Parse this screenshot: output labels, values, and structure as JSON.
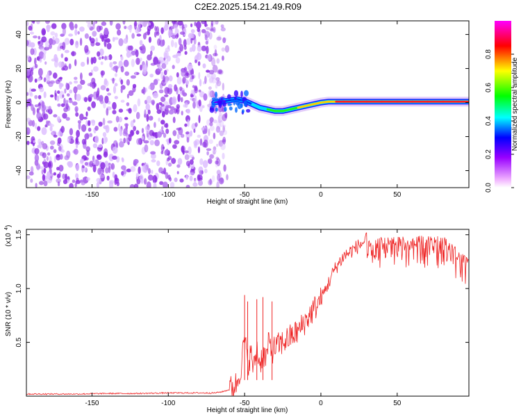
{
  "title": "C2E2.2025.154.21.49.R09",
  "colors": {
    "snr_line": "#ee2222",
    "axis": "#000000"
  },
  "chart_data": [
    {
      "type": "heatmap",
      "name": "spectrogram",
      "xlabel": "Height of straight line (km)",
      "ylabel": "Frequency (Hz)",
      "xlim": [
        -193,
        97
      ],
      "ylim": [
        -50,
        48
      ],
      "xticks": [
        -150,
        -100,
        -50,
        0,
        50
      ],
      "yticks": [
        -40,
        -20,
        0,
        20,
        40
      ],
      "colorbar": {
        "label": "Normalized spectral amplitude",
        "range": [
          0,
          1
        ],
        "ticks": [
          "0.0",
          "0.2",
          "0.4",
          "0.6",
          "0.8"
        ],
        "colormap": [
          "#ffffff",
          "#e6b3ff",
          "#9900ff",
          "#0000ff",
          "#00ffff",
          "#00ff00",
          "#ffff00",
          "#ff0000",
          "#ff00ff"
        ]
      },
      "noise_region": {
        "x_range": [
          -193,
          -65
        ],
        "y_range": [
          -50,
          48
        ]
      },
      "signal_track": {
        "x": [
          -70,
          -62,
          -55,
          -50,
          -45,
          -40,
          -35,
          -30,
          -25,
          -20,
          -15,
          -10,
          -5,
          0,
          5,
          10,
          15,
          20,
          30,
          40,
          50,
          60,
          70,
          80,
          90,
          97
        ],
        "y": [
          0,
          1,
          2,
          1,
          -1,
          -3,
          -4,
          -5,
          -5,
          -4,
          -3,
          -2,
          -1,
          0,
          0.5,
          0.5,
          0.5,
          0.5,
          0.5,
          0.5,
          0.5,
          0.5,
          0.5,
          0.5,
          0.5,
          0.5
        ],
        "amplitude": [
          0.2,
          0.3,
          0.35,
          0.4,
          0.45,
          0.5,
          0.6,
          0.65,
          0.7,
          0.72,
          0.75,
          0.78,
          0.8,
          0.82,
          0.85,
          0.88,
          0.9,
          0.92,
          0.93,
          0.94,
          0.95,
          0.95,
          0.95,
          0.95,
          0.95,
          0.95
        ]
      }
    },
    {
      "type": "line",
      "name": "snr",
      "xlabel": "Height of straight line (km)",
      "ylabel": "SNR (10 * v/v)",
      "yscale_label": "(x10",
      "yscale_exp": "4",
      "xlim": [
        -193,
        97
      ],
      "ylim": [
        0,
        1.55
      ],
      "xticks": [
        -150,
        -100,
        -50,
        0,
        50
      ],
      "yticks": [
        "0.5",
        "1.0",
        "1.5"
      ],
      "series": [
        {
          "x": [
            -193,
            -180,
            -160,
            -140,
            -120,
            -100,
            -80,
            -70,
            -65,
            -60,
            -55,
            -52,
            -50,
            -48,
            -46,
            -44,
            -42,
            -40,
            -38,
            -36,
            -34,
            -32,
            -30,
            -25,
            -20,
            -15,
            -10,
            -5,
            0,
            5,
            8,
            10,
            15,
            20,
            25,
            30,
            40,
            50,
            60,
            70,
            80,
            85,
            90,
            95,
            97
          ],
          "y": [
            0.02,
            0.02,
            0.02,
            0.025,
            0.025,
            0.03,
            0.03,
            0.03,
            0.04,
            0.06,
            0.12,
            0.3,
            0.55,
            0.28,
            0.4,
            0.25,
            0.45,
            0.3,
            0.4,
            0.35,
            0.5,
            0.42,
            0.45,
            0.5,
            0.55,
            0.6,
            0.7,
            0.8,
            0.9,
            1.05,
            1.15,
            1.2,
            1.3,
            1.35,
            1.4,
            1.45,
            1.48,
            1.48,
            1.49,
            1.49,
            1.49,
            1.45,
            1.35,
            1.3,
            1.3
          ]
        }
      ],
      "spikes": [
        {
          "x": -50,
          "y": 0.94
        },
        {
          "x": -48,
          "y": 0.88
        },
        {
          "x": -42,
          "y": 0.9
        },
        {
          "x": -38,
          "y": 0.92
        },
        {
          "x": -32,
          "y": 0.88
        }
      ]
    }
  ]
}
